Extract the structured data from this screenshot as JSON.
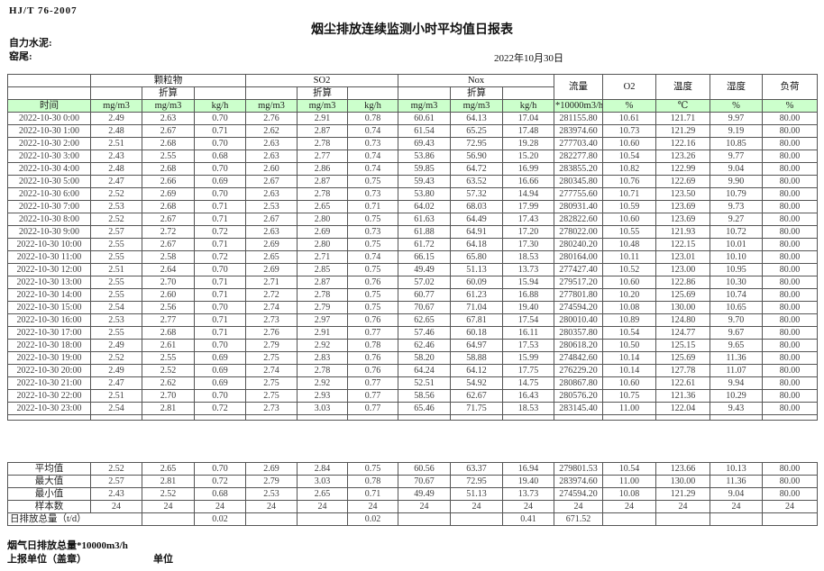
{
  "page": {
    "standard": "HJ/T 76-2007",
    "title": "烟尘排放连续监测小时平均值日报表",
    "company": "自力水泥:",
    "location": "窑尾:",
    "date": "2022年10月30日"
  },
  "colors": {
    "header_fill": "#ccffcc",
    "grid": "#555555"
  },
  "table": {
    "time_header": "时间",
    "groups": {
      "pm": "颗粒物",
      "so2": "SO2",
      "nox": "Nox"
    },
    "converted_label": "折算",
    "flow_header": "流量",
    "o2_header": "O2",
    "temp_header": "温度",
    "humidity_header": "湿度",
    "load_header": "负荷",
    "units": [
      "mg/m3",
      "mg/m3",
      "kg/h",
      "mg/m3",
      "mg/m3",
      "kg/h",
      "mg/m3",
      "mg/m3",
      "kg/h",
      "*10000m3/h",
      "%",
      "℃",
      "%",
      "%"
    ],
    "rows": [
      [
        "2022-10-30 0:00",
        "2.49",
        "2.63",
        "0.70",
        "2.76",
        "2.91",
        "0.78",
        "60.61",
        "64.13",
        "17.04",
        "281155.80",
        "10.61",
        "121.71",
        "9.97",
        "80.00"
      ],
      [
        "2022-10-30 1:00",
        "2.48",
        "2.67",
        "0.71",
        "2.62",
        "2.87",
        "0.74",
        "61.54",
        "65.25",
        "17.48",
        "283974.60",
        "10.73",
        "121.29",
        "9.19",
        "80.00"
      ],
      [
        "2022-10-30 2:00",
        "2.51",
        "2.68",
        "0.70",
        "2.63",
        "2.78",
        "0.73",
        "69.43",
        "72.95",
        "19.28",
        "277703.40",
        "10.60",
        "122.16",
        "10.85",
        "80.00"
      ],
      [
        "2022-10-30 3:00",
        "2.43",
        "2.55",
        "0.68",
        "2.63",
        "2.77",
        "0.74",
        "53.86",
        "56.90",
        "15.20",
        "282277.80",
        "10.54",
        "123.26",
        "9.77",
        "80.00"
      ],
      [
        "2022-10-30 4:00",
        "2.48",
        "2.68",
        "0.70",
        "2.60",
        "2.86",
        "0.74",
        "59.85",
        "64.72",
        "16.99",
        "283855.20",
        "10.82",
        "122.99",
        "9.04",
        "80.00"
      ],
      [
        "2022-10-30 5:00",
        "2.47",
        "2.66",
        "0.69",
        "2.67",
        "2.87",
        "0.75",
        "59.43",
        "63.52",
        "16.66",
        "280345.80",
        "10.76",
        "122.69",
        "9.90",
        "80.00"
      ],
      [
        "2022-10-30 6:00",
        "2.52",
        "2.69",
        "0.70",
        "2.63",
        "2.78",
        "0.73",
        "53.80",
        "57.32",
        "14.94",
        "277755.60",
        "10.71",
        "123.50",
        "10.79",
        "80.00"
      ],
      [
        "2022-10-30 7:00",
        "2.53",
        "2.68",
        "0.71",
        "2.53",
        "2.65",
        "0.71",
        "64.02",
        "68.03",
        "17.99",
        "280931.40",
        "10.59",
        "123.69",
        "9.73",
        "80.00"
      ],
      [
        "2022-10-30 8:00",
        "2.52",
        "2.67",
        "0.71",
        "2.67",
        "2.80",
        "0.75",
        "61.63",
        "64.49",
        "17.43",
        "282822.60",
        "10.60",
        "123.69",
        "9.27",
        "80.00"
      ],
      [
        "2022-10-30 9:00",
        "2.57",
        "2.72",
        "0.72",
        "2.63",
        "2.69",
        "0.73",
        "61.88",
        "64.91",
        "17.20",
        "278022.00",
        "10.55",
        "121.93",
        "10.72",
        "80.00"
      ],
      [
        "2022-10-30 10:00",
        "2.55",
        "2.67",
        "0.71",
        "2.69",
        "2.80",
        "0.75",
        "61.72",
        "64.18",
        "17.30",
        "280240.20",
        "10.48",
        "122.15",
        "10.01",
        "80.00"
      ],
      [
        "2022-10-30 11:00",
        "2.55",
        "2.58",
        "0.72",
        "2.65",
        "2.71",
        "0.74",
        "66.15",
        "65.80",
        "18.53",
        "280164.00",
        "10.11",
        "123.01",
        "10.10",
        "80.00"
      ],
      [
        "2022-10-30 12:00",
        "2.51",
        "2.64",
        "0.70",
        "2.69",
        "2.85",
        "0.75",
        "49.49",
        "51.13",
        "13.73",
        "277427.40",
        "10.52",
        "123.00",
        "10.95",
        "80.00"
      ],
      [
        "2022-10-30 13:00",
        "2.55",
        "2.70",
        "0.71",
        "2.71",
        "2.87",
        "0.76",
        "57.02",
        "60.09",
        "15.94",
        "279517.20",
        "10.60",
        "122.86",
        "10.30",
        "80.00"
      ],
      [
        "2022-10-30 14:00",
        "2.55",
        "2.60",
        "0.71",
        "2.72",
        "2.78",
        "0.75",
        "60.77",
        "61.23",
        "16.88",
        "277801.80",
        "10.20",
        "125.69",
        "10.74",
        "80.00"
      ],
      [
        "2022-10-30 15:00",
        "2.54",
        "2.56",
        "0.70",
        "2.74",
        "2.79",
        "0.75",
        "70.67",
        "71.04",
        "19.40",
        "274594.20",
        "10.08",
        "130.00",
        "10.65",
        "80.00"
      ],
      [
        "2022-10-30 16:00",
        "2.53",
        "2.77",
        "0.71",
        "2.73",
        "2.97",
        "0.76",
        "62.65",
        "67.81",
        "17.54",
        "280010.40",
        "10.89",
        "124.80",
        "9.70",
        "80.00"
      ],
      [
        "2022-10-30 17:00",
        "2.55",
        "2.68",
        "0.71",
        "2.76",
        "2.91",
        "0.77",
        "57.46",
        "60.18",
        "16.11",
        "280357.80",
        "10.54",
        "124.77",
        "9.67",
        "80.00"
      ],
      [
        "2022-10-30 18:00",
        "2.49",
        "2.61",
        "0.70",
        "2.79",
        "2.92",
        "0.78",
        "62.46",
        "64.97",
        "17.53",
        "280618.20",
        "10.50",
        "125.15",
        "9.65",
        "80.00"
      ],
      [
        "2022-10-30 19:00",
        "2.52",
        "2.55",
        "0.69",
        "2.75",
        "2.83",
        "0.76",
        "58.20",
        "58.88",
        "15.99",
        "274842.60",
        "10.14",
        "125.69",
        "11.36",
        "80.00"
      ],
      [
        "2022-10-30 20:00",
        "2.49",
        "2.52",
        "0.69",
        "2.74",
        "2.78",
        "0.76",
        "64.24",
        "64.12",
        "17.75",
        "276229.20",
        "10.14",
        "127.78",
        "11.07",
        "80.00"
      ],
      [
        "2022-10-30 21:00",
        "2.47",
        "2.62",
        "0.69",
        "2.75",
        "2.92",
        "0.77",
        "52.51",
        "54.92",
        "14.75",
        "280867.80",
        "10.60",
        "122.61",
        "9.94",
        "80.00"
      ],
      [
        "2022-10-30 22:00",
        "2.51",
        "2.70",
        "0.70",
        "2.75",
        "2.93",
        "0.77",
        "58.56",
        "62.67",
        "16.43",
        "280576.20",
        "10.75",
        "121.36",
        "10.29",
        "80.00"
      ],
      [
        "2022-10-30 23:00",
        "2.54",
        "2.81",
        "0.72",
        "2.73",
        "3.03",
        "0.77",
        "65.46",
        "71.75",
        "18.53",
        "283145.40",
        "11.00",
        "122.04",
        "9.43",
        "80.00"
      ]
    ],
    "summary": [
      {
        "label": "平均值",
        "values": [
          "2.52",
          "2.65",
          "0.70",
          "2.69",
          "2.84",
          "0.75",
          "60.56",
          "63.37",
          "16.94",
          "279801.53",
          "10.54",
          "123.66",
          "10.13",
          "80.00"
        ]
      },
      {
        "label": "最大值",
        "values": [
          "2.57",
          "2.81",
          "0.72",
          "2.79",
          "3.03",
          "0.78",
          "70.67",
          "72.95",
          "19.40",
          "283974.60",
          "11.00",
          "130.00",
          "11.36",
          "80.00"
        ]
      },
      {
        "label": "最小值",
        "values": [
          "2.43",
          "2.52",
          "0.68",
          "2.53",
          "2.65",
          "0.71",
          "49.49",
          "51.13",
          "13.73",
          "274594.20",
          "10.08",
          "121.29",
          "9.04",
          "80.00"
        ]
      },
      {
        "label": "样本数",
        "values": [
          "24",
          "24",
          "24",
          "24",
          "24",
          "24",
          "24",
          "24",
          "24",
          "24",
          "24",
          "24",
          "24",
          "24"
        ]
      }
    ],
    "daily_total": {
      "label": "日排放总量（t/d）",
      "values": [
        "",
        "0.02",
        "",
        "",
        "0.02",
        "",
        "",
        "0.41",
        "671.52",
        "",
        "",
        "",
        ""
      ]
    }
  },
  "footer": {
    "flue_gas_total": "烟气日排放总量*10000m3/h",
    "report_unit": "上报单位（盖章）",
    "unit": "单位"
  }
}
